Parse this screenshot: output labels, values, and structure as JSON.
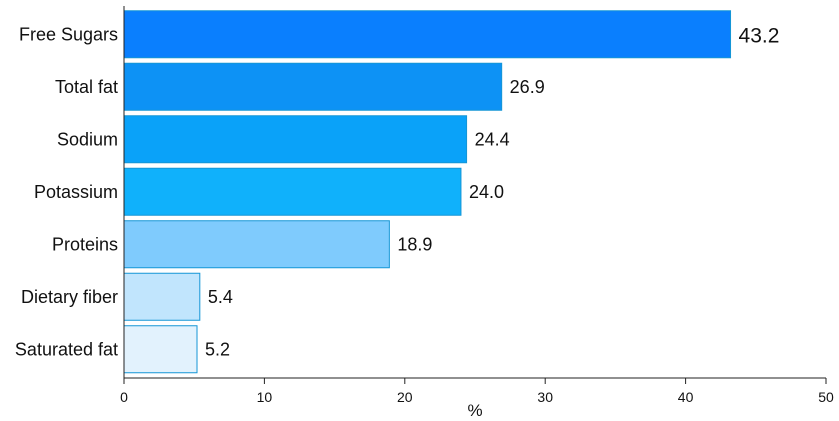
{
  "chart_data": {
    "type": "bar",
    "orientation": "horizontal",
    "categories": [
      "Free Sugars",
      "Total fat",
      "Sodium",
      "Potassium",
      "Proteins",
      "Dietary fiber",
      "Saturated fat"
    ],
    "values": [
      43.2,
      26.9,
      24.4,
      24.0,
      18.9,
      5.4,
      5.2
    ],
    "value_labels": [
      "43.2",
      "26.9",
      "24.4",
      "24.0",
      "18.9",
      "5.4",
      "5.2"
    ],
    "bar_colors": [
      "#0a7ffe",
      "#0d92f5",
      "#0aa2f9",
      "#10b1fb",
      "#7fcbfd",
      "#c1e5fd",
      "#e2f2fd"
    ],
    "edge_color": "#1596d6",
    "xlabel": "%",
    "ylabel": "",
    "xlim": [
      0,
      50
    ],
    "xticks": [
      0,
      10,
      20,
      30,
      40,
      50
    ],
    "xtick_labels": [
      "0",
      "10",
      "20",
      "30",
      "40",
      "50"
    ],
    "grid": false,
    "legend": "none"
  }
}
